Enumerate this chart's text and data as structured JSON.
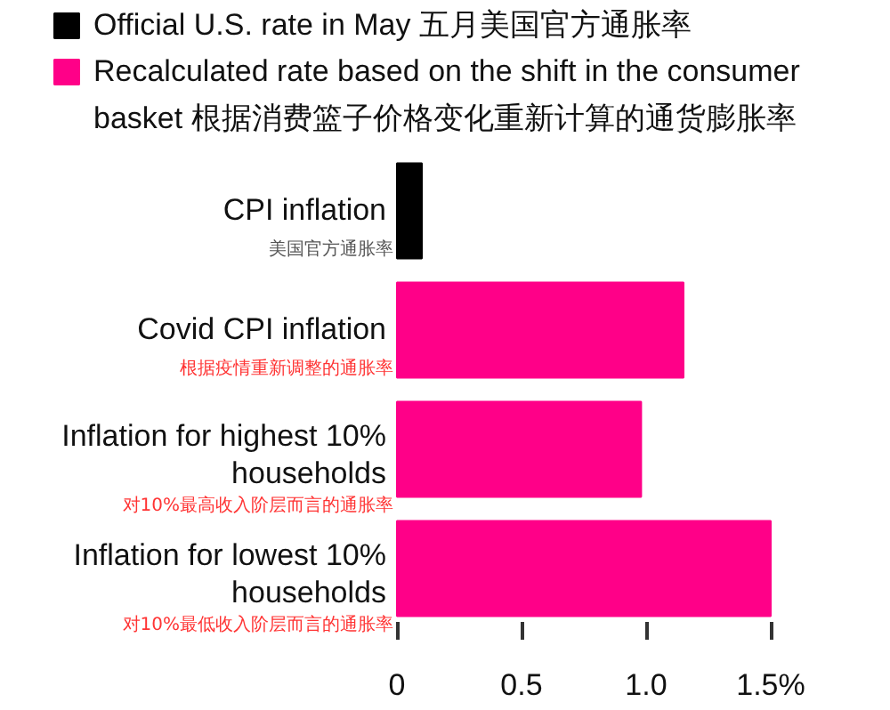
{
  "chart_data": {
    "type": "bar",
    "orientation": "horizontal",
    "categories": [
      "CPI inflation",
      "Covid CPI inflation",
      "Inflation for highest 10%\nhouseholds",
      "Inflation for lowest 10%\nhouseholds"
    ],
    "series": [
      {
        "name": "Official U.S. rate in May 五月美国官方通胀率",
        "color": "#000000",
        "values": [
          0.1,
          null,
          null,
          null
        ]
      },
      {
        "name": "Recalculated rate based on the shift in the consumer\nbasket 根据消费篮子价格变化重新计算的通货膨胀率",
        "color": "#ff0088",
        "values": [
          null,
          1.15,
          0.98,
          1.5
        ]
      }
    ],
    "annotations": [
      "美国官方通胀率",
      "根据疫情重新调整的通胀率",
      "对10%最高收入阶层而言的通胀率",
      "对10%最低收入阶层而言的通胀率"
    ],
    "xlim": [
      0,
      1.5
    ],
    "xticks": [
      0,
      0.5,
      {
        "value": 1,
        "label": "1.0"
      },
      {
        "value": 1.5,
        "label": "1.5%"
      }
    ],
    "legend": "top left",
    "grid": false
  }
}
